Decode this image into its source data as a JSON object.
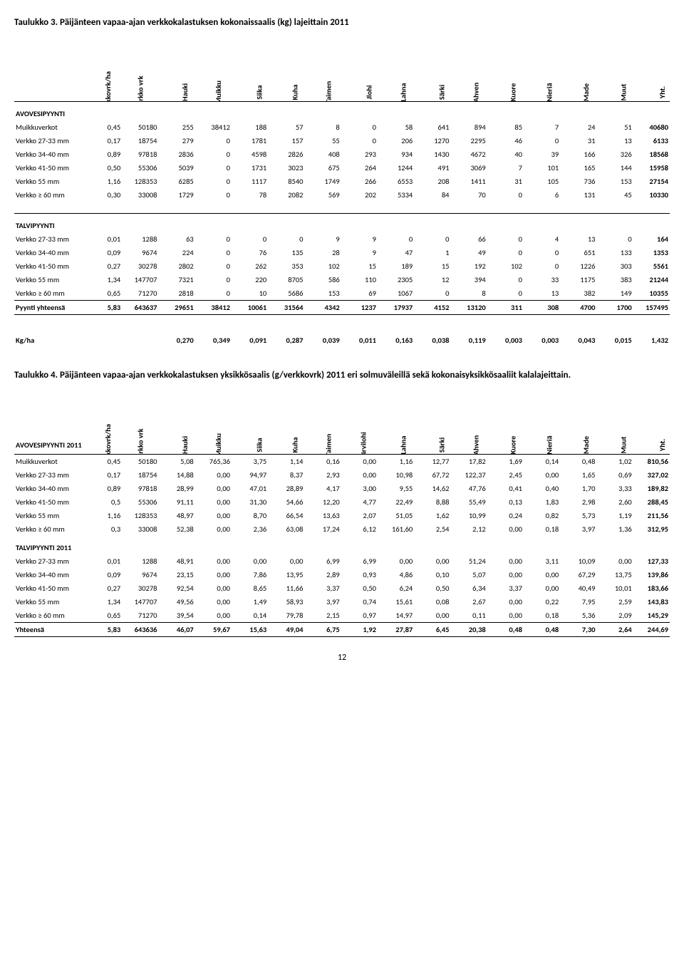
{
  "titles": {
    "t3": "Taulukko 3. Päijänteen vapaa-ajan verkkokalastuksen kokonaissaalis (kg) lajeittain 2011",
    "t4": "Taulukko 4. Päijänteen vapaa-ajan verkkokalastuksen yksikkösaalis (g/verkkovrk) 2011 eri solmuväleillä sekä kokonaisyksikkösaaliit kalalajeittain."
  },
  "head1": [
    "Verkkovrk/ha",
    "Verkko vrk",
    "Hauki",
    "Muikku",
    "Siika",
    "Kuha",
    "Taimen",
    "Jlohi",
    "Lahna",
    "Särki",
    "Ahven",
    "Kuore",
    "Nieriä",
    "Made",
    "Muut",
    "Yht."
  ],
  "head2": [
    "Verkkovrk/ha",
    "Verkko vrk",
    "Hauki",
    "Muikku",
    "Siika",
    "Kuha",
    "Taimen",
    "Järvilohi",
    "Lahna",
    "Särki",
    "Ahven",
    "Kuore",
    "Nieriä",
    "Made",
    "Muut",
    "Yht."
  ],
  "sections": {
    "avo": "AVOVESIPYYNTI",
    "talvi": "TALVIPYYNTI",
    "avo2011": "AVOVESIPYYNTI 2011",
    "talvi2011": "TALVIPYYNTI 2011"
  },
  "t3rows_avo": [
    {
      "label": "Muikkuverkot",
      "v": [
        "0,45",
        "50180",
        "255",
        "38412",
        "188",
        "57",
        "8",
        "0",
        "58",
        "641",
        "894",
        "85",
        "7",
        "24",
        "51",
        "40680"
      ]
    },
    {
      "label": "Verkko 27-33 mm",
      "v": [
        "0,17",
        "18754",
        "279",
        "0",
        "1781",
        "157",
        "55",
        "0",
        "206",
        "1270",
        "2295",
        "46",
        "0",
        "31",
        "13",
        "6133"
      ]
    },
    {
      "label": "Verkko 34-40 mm",
      "v": [
        "0,89",
        "97818",
        "2836",
        "0",
        "4598",
        "2826",
        "408",
        "293",
        "934",
        "1430",
        "4672",
        "40",
        "39",
        "166",
        "326",
        "18568"
      ]
    },
    {
      "label": "Verkko 41-50 mm",
      "v": [
        "0,50",
        "55306",
        "5039",
        "0",
        "1731",
        "3023",
        "675",
        "264",
        "1244",
        "491",
        "3069",
        "7",
        "101",
        "165",
        "144",
        "15958"
      ]
    },
    {
      "label": "Verkko 55 mm",
      "v": [
        "1,16",
        "128353",
        "6285",
        "0",
        "1117",
        "8540",
        "1749",
        "266",
        "6553",
        "208",
        "1411",
        "31",
        "105",
        "736",
        "153",
        "27154"
      ]
    },
    {
      "label": "Verkko ≥ 60 mm",
      "v": [
        "0,30",
        "33008",
        "1729",
        "0",
        "78",
        "2082",
        "569",
        "202",
        "5334",
        "84",
        "70",
        "0",
        "6",
        "131",
        "45",
        "10330"
      ]
    }
  ],
  "t3rows_talvi": [
    {
      "label": "Verkko 27-33 mm",
      "v": [
        "0,01",
        "1288",
        "63",
        "0",
        "0",
        "0",
        "9",
        "9",
        "0",
        "0",
        "66",
        "0",
        "4",
        "13",
        "0",
        "164"
      ]
    },
    {
      "label": "Verkko 34-40 mm",
      "v": [
        "0,09",
        "9674",
        "224",
        "0",
        "76",
        "135",
        "28",
        "9",
        "47",
        "1",
        "49",
        "0",
        "0",
        "651",
        "133",
        "1353"
      ]
    },
    {
      "label": "Verkko 41-50 mm",
      "v": [
        "0,27",
        "30278",
        "2802",
        "0",
        "262",
        "353",
        "102",
        "15",
        "189",
        "15",
        "192",
        "102",
        "0",
        "1226",
        "303",
        "5561"
      ]
    },
    {
      "label": "Verkko 55 mm",
      "v": [
        "1,34",
        "147707",
        "7321",
        "0",
        "220",
        "8705",
        "586",
        "110",
        "2305",
        "12",
        "394",
        "0",
        "33",
        "1175",
        "383",
        "21244"
      ]
    },
    {
      "label": "Verkko ≥ 60 mm",
      "v": [
        "0,65",
        "71270",
        "2818",
        "0",
        "10",
        "5686",
        "153",
        "69",
        "1067",
        "0",
        "8",
        "0",
        "13",
        "382",
        "149",
        "10355"
      ]
    }
  ],
  "t3total": {
    "label": "Pyynti yhteensä",
    "v": [
      "5,83",
      "643637",
      "29651",
      "38412",
      "10061",
      "31564",
      "4342",
      "1237",
      "17937",
      "4152",
      "13120",
      "311",
      "308",
      "4700",
      "1700",
      "157495"
    ]
  },
  "t3kgha": {
    "label": "Kg/ha",
    "v": [
      "",
      "",
      "0,270",
      "0,349",
      "0,091",
      "0,287",
      "0,039",
      "0,011",
      "0,163",
      "0,038",
      "0,119",
      "0,003",
      "0,003",
      "0,043",
      "0,015",
      "1,432"
    ]
  },
  "t4rows_avo": [
    {
      "label": "Muikkuverkot",
      "v": [
        "0,45",
        "50180",
        "5,08",
        "765,36",
        "3,75",
        "1,14",
        "0,16",
        "0,00",
        "1,16",
        "12,77",
        "17,82",
        "1,69",
        "0,14",
        "0,48",
        "1,02",
        "810,56"
      ]
    },
    {
      "label": "Verkko 27-33 mm",
      "v": [
        "0,17",
        "18754",
        "14,88",
        "0,00",
        "94,97",
        "8,37",
        "2,93",
        "0,00",
        "10,98",
        "67,72",
        "122,37",
        "2,45",
        "0,00",
        "1,65",
        "0,69",
        "327,02"
      ]
    },
    {
      "label": "Verkko 34-40 mm",
      "v": [
        "0,89",
        "97818",
        "28,99",
        "0,00",
        "47,01",
        "28,89",
        "4,17",
        "3,00",
        "9,55",
        "14,62",
        "47,76",
        "0,41",
        "0,40",
        "1,70",
        "3,33",
        "189,82"
      ]
    },
    {
      "label": "Verkko 41-50 mm",
      "v": [
        "0,5",
        "55306",
        "91,11",
        "0,00",
        "31,30",
        "54,66",
        "12,20",
        "4,77",
        "22,49",
        "8,88",
        "55,49",
        "0,13",
        "1,83",
        "2,98",
        "2,60",
        "288,45"
      ]
    },
    {
      "label": "Verkko 55 mm",
      "v": [
        "1,16",
        "128353",
        "48,97",
        "0,00",
        "8,70",
        "66,54",
        "13,63",
        "2,07",
        "51,05",
        "1,62",
        "10,99",
        "0,24",
        "0,82",
        "5,73",
        "1,19",
        "211,56"
      ]
    },
    {
      "label": "Verkko ≥ 60 mm",
      "v": [
        "0,3",
        "33008",
        "52,38",
        "0,00",
        "2,36",
        "63,08",
        "17,24",
        "6,12",
        "161,60",
        "2,54",
        "2,12",
        "0,00",
        "0,18",
        "3,97",
        "1,36",
        "312,95"
      ]
    }
  ],
  "t4rows_talvi": [
    {
      "label": "Verkko 27-33 mm",
      "v": [
        "0,01",
        "1288",
        "48,91",
        "0,00",
        "0,00",
        "0,00",
        "6,99",
        "6,99",
        "0,00",
        "0,00",
        "51,24",
        "0,00",
        "3,11",
        "10,09",
        "0,00",
        "127,33"
      ]
    },
    {
      "label": "Verkko 34-40 mm",
      "v": [
        "0,09",
        "9674",
        "23,15",
        "0,00",
        "7,86",
        "13,95",
        "2,89",
        "0,93",
        "4,86",
        "0,10",
        "5,07",
        "0,00",
        "0,00",
        "67,29",
        "13,75",
        "139,86"
      ]
    },
    {
      "label": "Verkko 41-50 mm",
      "v": [
        "0,27",
        "30278",
        "92,54",
        "0,00",
        "8,65",
        "11,66",
        "3,37",
        "0,50",
        "6,24",
        "0,50",
        "6,34",
        "3,37",
        "0,00",
        "40,49",
        "10,01",
        "183,66"
      ]
    },
    {
      "label": "Verkko 55 mm",
      "v": [
        "1,34",
        "147707",
        "49,56",
        "0,00",
        "1,49",
        "58,93",
        "3,97",
        "0,74",
        "15,61",
        "0,08",
        "2,67",
        "0,00",
        "0,22",
        "7,95",
        "2,59",
        "143,83"
      ]
    },
    {
      "label": "Verkko ≥ 60 mm",
      "v": [
        "0,65",
        "71270",
        "39,54",
        "0,00",
        "0,14",
        "79,78",
        "2,15",
        "0,97",
        "14,97",
        "0,00",
        "0,11",
        "0,00",
        "0,18",
        "5,36",
        "2,09",
        "145,29"
      ]
    }
  ],
  "t4total": {
    "label": "Yhteensä",
    "v": [
      "5,83",
      "643636",
      "46,07",
      "59,67",
      "15,63",
      "49,04",
      "6,75",
      "1,92",
      "27,87",
      "6,45",
      "20,38",
      "0,48",
      "0,48",
      "7,30",
      "2,64",
      "244,69"
    ]
  },
  "pagenum": "12"
}
